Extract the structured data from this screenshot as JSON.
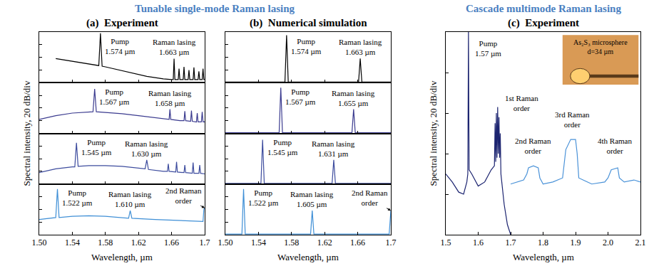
{
  "headings": [
    "Tunable single-mode Raman lasing",
    "Cascade multimode Raman lasing"
  ],
  "chart_data": [
    {
      "letter": "(a)",
      "title": "Experiment",
      "y_label": "Spectral intensity, 20 dB/div",
      "x_label": "Wavelength, µm",
      "rows": [
        {
          "type": "line",
          "xlim": [
            1.5,
            1.7
          ],
          "xticks": [
            {
              "value": 1.5,
              "label": "1.50"
            },
            1.54,
            1.58,
            1.62,
            1.66,
            1.7
          ],
          "ylim": [
            -80,
            0
          ],
          "yticks": [
            -80,
            -60,
            -40,
            -20,
            0
          ],
          "tick_labels": false,
          "series": [
            {
              "color": "#000000",
              "x": [
                1.52,
                1.53,
                1.54,
                1.55,
                1.56,
                1.57,
                1.572,
                1.574,
                1.576,
                1.58,
                1.59,
                1.6,
                1.61,
                1.62,
                1.63,
                1.64,
                1.65,
                1.66,
                1.662,
                1.663,
                1.664,
                1.668,
                1.669,
                1.67,
                1.674,
                1.675,
                1.676,
                1.68,
                1.681,
                1.682,
                1.686,
                1.687,
                1.688,
                1.692,
                1.693,
                1.694,
                1.697,
                1.698,
                1.699,
                1.7
              ],
              "values": [
                -42,
                -44,
                -46,
                -48,
                -50,
                -52,
                -53,
                -2,
                -54,
                -55,
                -58,
                -61,
                -64,
                -67,
                -70,
                -72,
                -74,
                -75,
                -75,
                -42,
                -75,
                -75,
                -58,
                -75,
                -75,
                -55,
                -75,
                -75,
                -60,
                -75,
                -75,
                -56,
                -75,
                -75,
                -62,
                -75,
                -75,
                -58,
                -75,
                -75
              ]
            }
          ],
          "annotations": [
            {
              "text": "Pump\n1.574 µm",
              "x": 1.598,
              "y": -22
            },
            {
              "text": "Raman lasing\n1.663 µm",
              "x": 1.663,
              "y": -24
            }
          ]
        },
        {
          "type": "line",
          "xlim": [
            1.5,
            1.7
          ],
          "xticks": [
            {
              "value": 1.5,
              "label": "1.50"
            },
            1.54,
            1.58,
            1.62,
            1.66,
            1.7
          ],
          "ylim": [
            -80,
            0
          ],
          "yticks": [
            -80,
            -60,
            -40,
            -20,
            0
          ],
          "tick_labels": false,
          "series": [
            {
              "color": "#3b3b8f",
              "x": [
                1.5,
                1.52,
                1.54,
                1.56,
                1.565,
                1.567,
                1.569,
                1.58,
                1.6,
                1.62,
                1.64,
                1.655,
                1.657,
                1.658,
                1.659,
                1.67,
                1.675,
                1.676,
                1.677,
                1.683,
                1.684,
                1.685,
                1.69,
                1.691,
                1.692,
                1.696,
                1.697,
                1.698,
                1.7
              ],
              "values": [
                -58,
                -52,
                -48,
                -46,
                -46,
                -10,
                -46,
                -47,
                -49,
                -52,
                -55,
                -57,
                -58,
                -42,
                -58,
                -60,
                -60,
                -45,
                -60,
                -61,
                -44,
                -61,
                -62,
                -48,
                -62,
                -62,
                -46,
                -62,
                -62
              ]
            }
          ],
          "annotations": [
            {
              "text": "Pump\n1.567 µm",
              "x": 1.591,
              "y": -22
            },
            {
              "text": "Raman lasing\n1.658 µm",
              "x": 1.658,
              "y": -24
            }
          ]
        },
        {
          "type": "line",
          "xlim": [
            1.5,
            1.7
          ],
          "xticks": [
            {
              "value": 1.5,
              "label": "1.50"
            },
            1.54,
            1.58,
            1.62,
            1.66,
            1.7
          ],
          "ylim": [
            -80,
            0
          ],
          "yticks": [
            -80,
            -60,
            -40,
            -20,
            0
          ],
          "tick_labels": false,
          "series": [
            {
              "color": "#3d4c9e",
              "x": [
                1.5,
                1.52,
                1.54,
                1.543,
                1.545,
                1.547,
                1.56,
                1.58,
                1.6,
                1.62,
                1.628,
                1.63,
                1.632,
                1.65,
                1.655,
                1.656,
                1.657,
                1.665,
                1.666,
                1.667,
                1.675,
                1.676,
                1.677,
                1.685,
                1.686,
                1.687,
                1.693,
                1.694,
                1.695,
                1.7
              ],
              "values": [
                -62,
                -56,
                -53,
                -53,
                -15,
                -52,
                -51,
                -51,
                -52,
                -55,
                -56,
                -42,
                -57,
                -60,
                -60,
                -48,
                -60,
                -61,
                -45,
                -61,
                -62,
                -50,
                -62,
                -63,
                -46,
                -63,
                -63,
                -50,
                -63,
                -64
              ]
            }
          ],
          "annotations": [
            {
              "text": "Pump\n1.545 µm",
              "x": 1.569,
              "y": -22
            },
            {
              "text": "Raman lasing\n1.630 µm",
              "x": 1.63,
              "y": -24
            }
          ]
        },
        {
          "type": "line",
          "xlim": [
            1.5,
            1.7
          ],
          "xticks": [
            {
              "value": 1.5,
              "label": "1.50"
            },
            1.54,
            1.58,
            1.62,
            1.66,
            1.7
          ],
          "ylim": [
            -80,
            0
          ],
          "yticks": [
            -80,
            -60,
            -40,
            -20,
            0
          ],
          "tick_labels": "x",
          "series": [
            {
              "color": "#3f8fd6",
              "x": [
                1.5,
                1.52,
                1.522,
                1.524,
                1.54,
                1.56,
                1.58,
                1.6,
                1.608,
                1.61,
                1.612,
                1.64,
                1.66,
                1.68,
                1.695,
                1.698,
                1.699,
                1.7
              ],
              "values": [
                -56,
                -53,
                -8,
                -53,
                -51,
                -50,
                -51,
                -53,
                -54,
                -42,
                -54,
                -56,
                -57,
                -58,
                -59,
                -59,
                -40,
                -38
              ]
            }
          ],
          "annotations": [
            {
              "text": "Pump\n1.522 µm",
              "x": 1.546,
              "y": -22
            },
            {
              "text": "Raman lasing\n1.610 µm",
              "x": 1.61,
              "y": -24
            },
            {
              "text": "2nd Raman\norder",
              "x": 1.7,
              "y": -38,
              "marker": "arrow"
            }
          ]
        }
      ]
    },
    {
      "letter": "(b)",
      "title": "Numerical simulation",
      "x_label": "Wavelength, µm",
      "rows": [
        {
          "type": "line",
          "xlim": [
            1.5,
            1.7
          ],
          "xticks": [
            {
              "value": 1.5,
              "label": "1.50"
            },
            1.54,
            1.58,
            1.62,
            1.66,
            1.7
          ],
          "ylim": [
            -80,
            0
          ],
          "yticks": [
            -80,
            -60,
            -40,
            -20,
            0
          ],
          "tick_labels": false,
          "series": [
            {
              "color": "#000000",
              "x": [
                1.5,
                1.572,
                1.574,
                1.576,
                1.661,
                1.663,
                1.665,
                1.7
              ],
              "values": [
                -79,
                -79,
                -5,
                -79,
                -79,
                -42,
                -79,
                -79
              ]
            }
          ],
          "annotations": [
            {
              "text": "Pump\n1.574 µm",
              "x": 1.598,
              "y": -22
            },
            {
              "text": "Raman lasing\n1.663 µm",
              "x": 1.663,
              "y": -24
            }
          ]
        },
        {
          "type": "line",
          "xlim": [
            1.5,
            1.7
          ],
          "xticks": [
            {
              "value": 1.5,
              "label": "1.50"
            },
            1.54,
            1.58,
            1.62,
            1.66,
            1.7
          ],
          "ylim": [
            -80,
            0
          ],
          "yticks": [
            -80,
            -60,
            -40,
            -20,
            0
          ],
          "tick_labels": false,
          "series": [
            {
              "color": "#3b3b8f",
              "x": [
                1.5,
                1.565,
                1.567,
                1.569,
                1.653,
                1.655,
                1.657,
                1.7
              ],
              "values": [
                -79,
                -79,
                -8,
                -79,
                -79,
                -42,
                -79,
                -79
              ]
            }
          ],
          "annotations": [
            {
              "text": "Pump\n1.567 µm",
              "x": 1.591,
              "y": -22
            },
            {
              "text": "Raman lasing\n1.655 µm",
              "x": 1.655,
              "y": -24
            }
          ]
        },
        {
          "type": "line",
          "xlim": [
            1.5,
            1.7
          ],
          "xticks": [
            {
              "value": 1.5,
              "label": "1.50"
            },
            1.54,
            1.58,
            1.62,
            1.66,
            1.7
          ],
          "ylim": [
            -80,
            0
          ],
          "yticks": [
            -80,
            -60,
            -40,
            -20,
            0
          ],
          "tick_labels": false,
          "series": [
            {
              "color": "#3d4c9e",
              "x": [
                1.5,
                1.543,
                1.545,
                1.547,
                1.629,
                1.631,
                1.633,
                1.7
              ],
              "values": [
                -79,
                -79,
                -10,
                -79,
                -79,
                -42,
                -79,
                -79
              ]
            }
          ],
          "annotations": [
            {
              "text": "Pump\n1.545 µm",
              "x": 1.569,
              "y": -22
            },
            {
              "text": "Raman lasing\n1.631 µm",
              "x": 1.631,
              "y": -24
            }
          ]
        },
        {
          "type": "line",
          "xlim": [
            1.5,
            1.7
          ],
          "xticks": [
            {
              "value": 1.5,
              "label": "1.50"
            },
            1.54,
            1.58,
            1.62,
            1.66,
            1.7
          ],
          "ylim": [
            -80,
            0
          ],
          "yticks": [
            -80,
            -60,
            -40,
            -20,
            0
          ],
          "tick_labels": "x",
          "series": [
            {
              "color": "#3f8fd6",
              "x": [
                1.5,
                1.52,
                1.522,
                1.524,
                1.603,
                1.605,
                1.607,
                1.698,
                1.7
              ],
              "values": [
                -79,
                -79,
                -8,
                -79,
                -79,
                -42,
                -79,
                -79,
                -42
              ]
            }
          ],
          "annotations": [
            {
              "text": "Pump\n1.522 µm",
              "x": 1.546,
              "y": -22
            },
            {
              "text": "Raman lasing\n1.605 µm",
              "x": 1.605,
              "y": -24
            },
            {
              "text": "2nd Raman\norder",
              "x": 1.7,
              "y": -42,
              "marker": "arrow"
            }
          ]
        }
      ]
    },
    {
      "letter": "(c)",
      "title": "Experiment",
      "y_label": "Spectral intensity, 20 dB/div",
      "x_label": "Wavelength, µm",
      "inset": "As₂S₃ microsphere\nd=34 µm",
      "rows": [
        {
          "type": "line",
          "xlim": [
            1.5,
            2.1
          ],
          "xticks": [
            1.5,
            1.6,
            1.7,
            1.8,
            1.9,
            {
              "value": 2,
              "label": "2.0"
            },
            2.1
          ],
          "ylim": [
            -100,
            0
          ],
          "yticks": [
            -100,
            -80,
            -60,
            -40,
            -20,
            0
          ],
          "tick_labels": "x",
          "series": [
            {
              "color": "#1c2470",
              "x": [
                1.5,
                1.52,
                1.54,
                1.555,
                1.565,
                1.568,
                1.57,
                1.572,
                1.58,
                1.6,
                1.62,
                1.64,
                1.65,
                1.652,
                1.654,
                1.656,
                1.658,
                1.66,
                1.662,
                1.664,
                1.666,
                1.668,
                1.67,
                1.68,
                1.69,
                1.7
              ],
              "values": [
                -70,
                -74,
                -79,
                -80,
                -74,
                -70,
                0,
                -68,
                -70,
                -76,
                -74,
                -68,
                -66,
                -45,
                -64,
                -40,
                -62,
                -37,
                -60,
                -42,
                -62,
                -50,
                -70,
                -85,
                -95,
                -100
              ]
            },
            {
              "color": "#4a92d8",
              "x": [
                1.7,
                1.72,
                1.74,
                1.75,
                1.755,
                1.77,
                1.785,
                1.79,
                1.8,
                1.83,
                1.86,
                1.87,
                1.885,
                1.9,
                1.905,
                1.91,
                1.95,
                1.99,
                2.0,
                2.01,
                2.03,
                2.035,
                2.05,
                2.08,
                2.1
              ],
              "values": [
                -75,
                -74,
                -73,
                -70,
                -67,
                -66,
                -67,
                -72,
                -75,
                -74,
                -72,
                -58,
                -53,
                -53,
                -60,
                -72,
                -75,
                -74,
                -72,
                -68,
                -67,
                -72,
                -74,
                -73,
                -74
              ]
            }
          ],
          "annotations": [
            {
              "text": "Pump\n1.57 µm",
              "x": 1.63,
              "y": -8
            },
            {
              "text": "1st Raman\norder",
              "x": 1.735,
              "y": -35
            },
            {
              "text": "2nd Raman\norder",
              "x": 1.77,
              "y": -56
            },
            {
              "text": "3rd Raman\norder",
              "x": 1.89,
              "y": -43
            },
            {
              "text": "4th Raman\norder",
              "x": 2.02,
              "y": -56
            }
          ]
        }
      ]
    }
  ]
}
